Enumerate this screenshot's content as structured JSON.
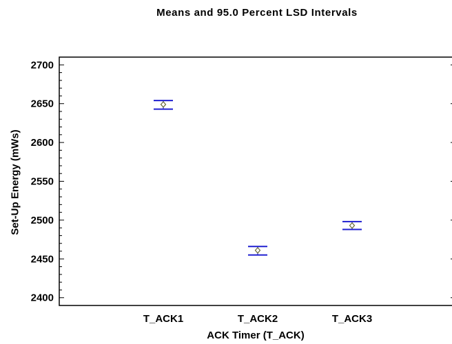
{
  "chart_data": {
    "type": "interval",
    "title": "Means and 95.0 Percent LSD Intervals",
    "xlabel": "ACK Timer (T_ACK)",
    "ylabel": "Set-Up Energy (mWs)",
    "categories": [
      "T_ACK1",
      "T_ACK2",
      "T_ACK3"
    ],
    "means": [
      2649,
      2461,
      2493
    ],
    "lower": [
      2643,
      2455,
      2488
    ],
    "upper": [
      2654,
      2466,
      2498
    ],
    "ylim": [
      2390,
      2710
    ],
    "yticks": [
      2400,
      2450,
      2500,
      2550,
      2600,
      2650,
      2700
    ],
    "ytick_labels": [
      "2400",
      "2450",
      "2500",
      "2550",
      "2600",
      "2650",
      "2700"
    ],
    "colors": {
      "interval": "#1f1fd0",
      "mean_marker": "#6b6b3a",
      "axis": "#000000"
    }
  }
}
